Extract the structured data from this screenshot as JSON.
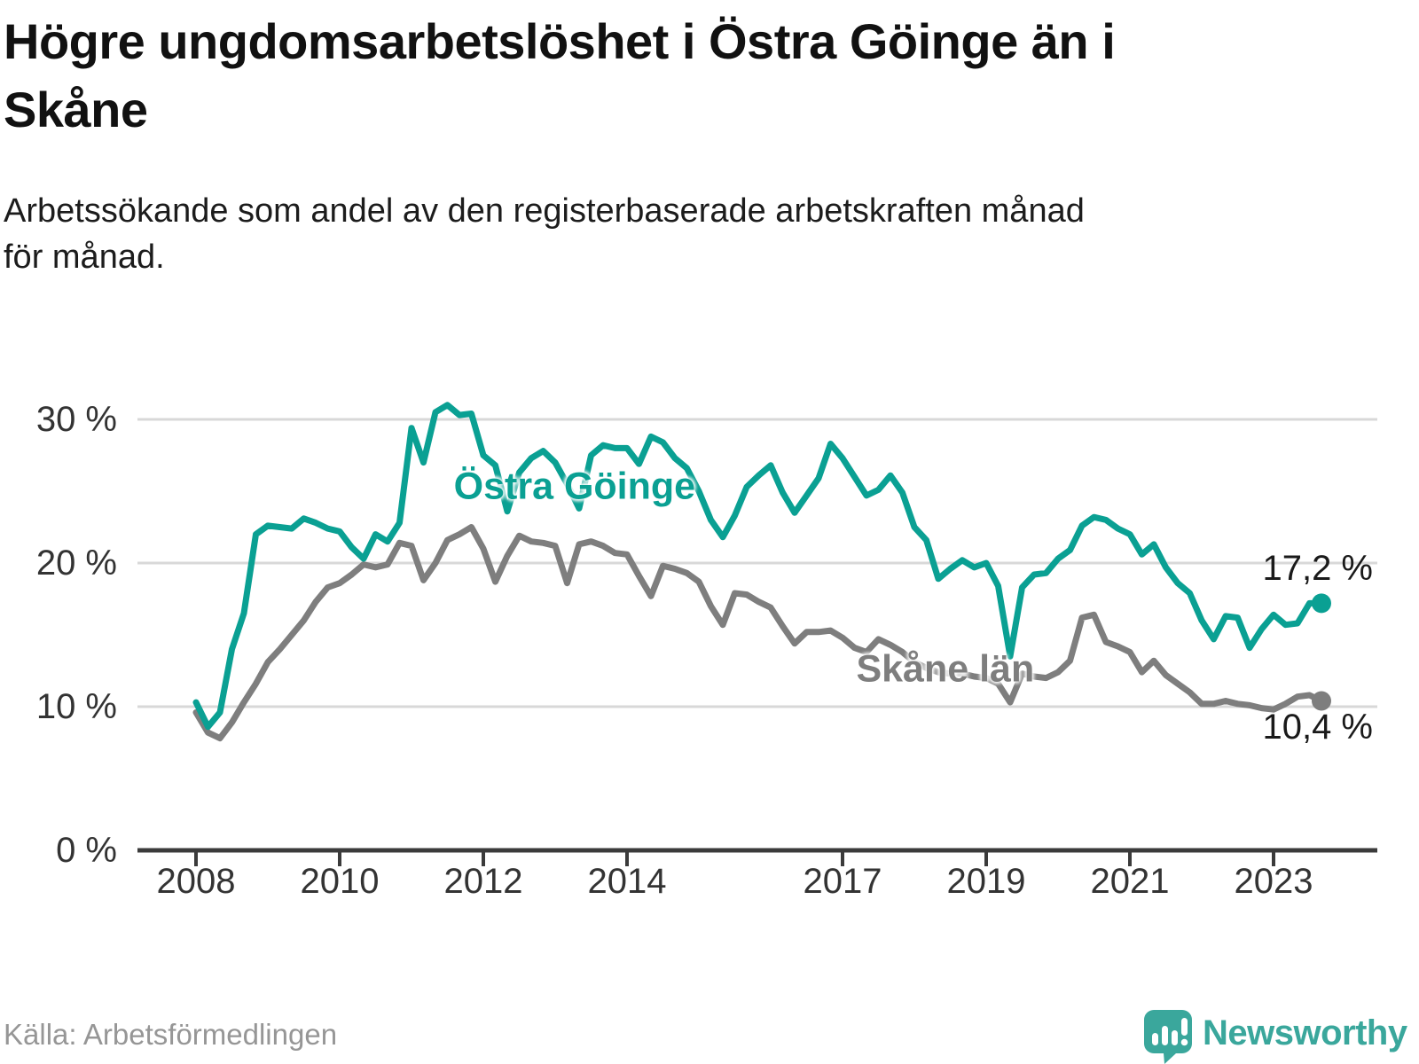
{
  "header": {
    "title_lines": [
      "Högre ungdomsarbetslöshet i Östra Göinge än i",
      "Skåne"
    ],
    "subtitle_lines": [
      "Arbetssökande som andel av den registerbaserade arbetskraften månad",
      "för månad."
    ]
  },
  "footer": {
    "source": "Källa: Arbetsförmedlingen",
    "logo_text": "Newsworthy",
    "logo_icon": "newsworthy-pin-barchart-icon"
  },
  "colors": {
    "ostra_goinge": "#0aa093",
    "skane_lan": "#7e7e7e",
    "grid": "#d8d8d8",
    "axis": "#3b3b3b",
    "tick_text": "#333333",
    "value_text": "#1a1a1a",
    "muted_text": "#969696",
    "logo": "#3aa79c",
    "background": "#ffffff"
  },
  "chart_data": {
    "type": "line",
    "title": "Högre ungdomsarbetslöshet i Östra Göinge än i Skåne",
    "subtitle": "Arbetssökande som andel av den registerbaserade arbetskraften månad för månad.",
    "xlabel": "",
    "ylabel": "",
    "grid": true,
    "legend_position": "inline-labels",
    "x_unit": "decimal-year (monthly data, 2 month sampling)",
    "x_start": 2008.0,
    "x_step_years": 0.1666667,
    "x_end": 2023.667,
    "xlim": [
      2007.2,
      2024.45
    ],
    "ylim": [
      0,
      32.5
    ],
    "x_axis": {
      "tick_years": [
        2008,
        2010,
        2012,
        2014,
        2017,
        2019,
        2021,
        2023
      ],
      "tick_labels": [
        "2008",
        "2010",
        "2012",
        "2014",
        "2017",
        "2019",
        "2021",
        "2023"
      ]
    },
    "y_axis": {
      "ticks": [
        {
          "value": 0,
          "label": "0 %"
        },
        {
          "value": 10,
          "label": "10 %"
        },
        {
          "value": 20,
          "label": "20 %"
        },
        {
          "value": 30,
          "label": "30 %"
        }
      ],
      "grid_values": [
        10,
        20,
        30
      ]
    },
    "series": [
      {
        "id": "ostra-goinge",
        "name": "Östra Göinge",
        "color": "#0aa093",
        "end_label": "17,2 %",
        "end_value": 17.2,
        "label_pos": {
          "year": 2013.27,
          "value": 25.3
        },
        "end_label_dy": -39,
        "values": [
          10.3,
          8.6,
          9.6,
          14.0,
          16.5,
          22.0,
          22.6,
          22.5,
          22.4,
          23.1,
          22.8,
          22.4,
          22.2,
          21.1,
          20.3,
          22.0,
          21.5,
          22.8,
          29.4,
          27.0,
          30.5,
          31.0,
          30.3,
          30.4,
          27.5,
          26.8,
          23.6,
          26.3,
          27.3,
          27.8,
          27.0,
          25.5,
          23.8,
          27.5,
          28.2,
          28.0,
          28.0,
          26.9,
          28.8,
          28.4,
          27.3,
          26.6,
          25.0,
          23.0,
          21.8,
          23.3,
          25.3,
          26.1,
          26.8,
          24.9,
          23.5,
          24.7,
          25.9,
          28.3,
          27.3,
          26.0,
          24.7,
          25.1,
          26.1,
          24.9,
          22.5,
          21.6,
          18.9,
          19.6,
          20.2,
          19.7,
          20.0,
          18.4,
          13.5,
          18.3,
          19.2,
          19.3,
          20.3,
          20.9,
          22.6,
          23.2,
          23.0,
          22.4,
          22.0,
          20.6,
          21.3,
          19.7,
          18.6,
          17.9,
          16.0,
          14.7,
          16.3,
          16.2,
          14.1,
          15.4,
          16.4,
          15.7,
          15.8,
          17.2,
          17.2
        ]
      },
      {
        "id": "skane-lan",
        "name": "Skåne län",
        "color": "#7e7e7e",
        "end_label": "10,4 %",
        "end_value": 10.4,
        "label_pos": {
          "year": 2018.43,
          "value": 12.6
        },
        "end_label_dy": 29,
        "values": [
          9.6,
          8.2,
          7.8,
          8.9,
          10.3,
          11.6,
          13.1,
          14.0,
          15.0,
          16.0,
          17.3,
          18.3,
          18.6,
          19.2,
          19.9,
          19.7,
          19.9,
          21.4,
          21.2,
          18.8,
          20.0,
          21.6,
          22.0,
          22.5,
          21.0,
          18.7,
          20.5,
          21.9,
          21.5,
          21.4,
          21.2,
          18.6,
          21.3,
          21.5,
          21.2,
          20.7,
          20.6,
          19.1,
          17.7,
          19.8,
          19.6,
          19.3,
          18.7,
          17.0,
          15.7,
          17.9,
          17.8,
          17.3,
          16.9,
          15.6,
          14.4,
          15.2,
          15.2,
          15.3,
          14.8,
          14.1,
          13.8,
          14.7,
          14.3,
          13.8,
          13.1,
          12.7,
          12.4,
          12.3,
          12.3,
          12.1,
          12.0,
          11.6,
          10.3,
          12.3,
          12.1,
          12.0,
          12.4,
          13.2,
          16.2,
          16.4,
          14.5,
          14.2,
          13.8,
          12.4,
          13.2,
          12.2,
          11.6,
          11.0,
          10.2,
          10.2,
          10.4,
          10.2,
          10.1,
          9.9,
          9.8,
          10.2,
          10.7,
          10.8,
          10.4
        ]
      }
    ]
  }
}
